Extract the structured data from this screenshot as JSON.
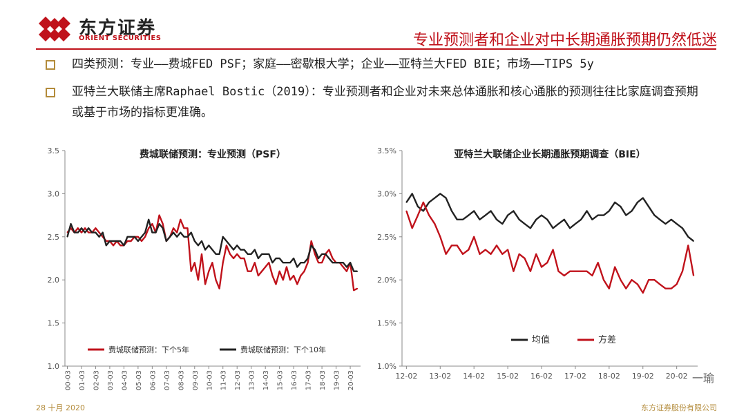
{
  "header": {
    "logo_cn": "东方证券",
    "logo_en": "ORIENT SECURITIES",
    "title": "专业预测者和企业对中长期通胀预期仍然低迷"
  },
  "bullets": [
    "四类预测：专业——费城FED PSF；家庭——密歇根大学；企业——亚特兰大FED BIE；市场——TIPS 5y",
    "亚特兰大联储主席Raphael Bostic（2019）：专业预测者和企业对未来总体通胀和核心通胀的预测往往比家庭调查预期或基于市场的指标更准确。"
  ],
  "footer": {
    "date": "28 十月 2020",
    "company": "东方证券股份有限公司",
    "watermark": "一瑜"
  },
  "colors": {
    "accent": "#c0121b",
    "series_red": "#c0121b",
    "series_black": "#222222",
    "gold": "#b38b3a"
  },
  "chart_data": [
    {
      "type": "line",
      "title": "费城联储预测：专业预测（PSF）",
      "xlabel": "",
      "ylabel": "",
      "ylim": [
        1.0,
        3.5
      ],
      "yticks": [
        "1.0",
        "1.5",
        "2.0",
        "2.5",
        "3.0",
        "3.5"
      ],
      "xticks": [
        "00-03",
        "01-03",
        "02-03",
        "03-03",
        "04-03",
        "05-03",
        "06-03",
        "07-03",
        "08-03",
        "09-03",
        "10-03",
        "11-03",
        "12-03",
        "13-03",
        "14-03",
        "15-03",
        "16-03",
        "17-03",
        "18-03",
        "19-03",
        "20-03"
      ],
      "legend_position": "bottom",
      "series": [
        {
          "name": "费城联储预测：下个5年",
          "color": "#c0121b",
          "x": [
            2000.17,
            2000.42,
            2000.67,
            2000.92,
            2001.17,
            2001.42,
            2001.67,
            2001.92,
            2002.17,
            2002.42,
            2002.67,
            2002.92,
            2003.17,
            2003.42,
            2003.67,
            2003.92,
            2004.17,
            2004.42,
            2004.67,
            2004.92,
            2005.17,
            2005.42,
            2005.67,
            2005.92,
            2006.17,
            2006.42,
            2006.67,
            2006.92,
            2007.17,
            2007.42,
            2007.67,
            2007.92,
            2008.17,
            2008.42,
            2008.67,
            2008.92,
            2009.17,
            2009.42,
            2009.67,
            2009.92,
            2010.17,
            2010.42,
            2010.67,
            2010.92,
            2011.17,
            2011.42,
            2011.67,
            2011.92,
            2012.17,
            2012.42,
            2012.67,
            2012.92,
            2013.17,
            2013.42,
            2013.67,
            2013.92,
            2014.17,
            2014.42,
            2014.67,
            2014.92,
            2015.17,
            2015.42,
            2015.67,
            2015.92,
            2016.17,
            2016.42,
            2016.67,
            2016.92,
            2017.17,
            2017.42,
            2017.67,
            2017.92,
            2018.17,
            2018.42,
            2018.67,
            2018.92,
            2019.17,
            2019.42,
            2019.67,
            2019.92,
            2020.17,
            2020.42,
            2020.67
          ],
          "values": [
            2.55,
            2.6,
            2.55,
            2.6,
            2.55,
            2.6,
            2.55,
            2.55,
            2.6,
            2.55,
            2.5,
            2.45,
            2.45,
            2.4,
            2.45,
            2.4,
            2.4,
            2.45,
            2.45,
            2.5,
            2.5,
            2.45,
            2.5,
            2.6,
            2.65,
            2.55,
            2.75,
            2.65,
            2.45,
            2.5,
            2.6,
            2.55,
            2.7,
            2.6,
            2.6,
            2.1,
            2.2,
            2.0,
            2.3,
            1.95,
            2.1,
            2.2,
            2.0,
            1.9,
            2.2,
            2.4,
            2.3,
            2.25,
            2.3,
            2.25,
            2.25,
            2.1,
            2.1,
            2.2,
            2.05,
            2.1,
            2.15,
            2.2,
            2.05,
            1.95,
            2.1,
            2.0,
            2.15,
            2.0,
            2.05,
            1.95,
            2.05,
            2.1,
            2.2,
            2.45,
            2.3,
            2.2,
            2.2,
            2.3,
            2.35,
            2.25,
            2.2,
            2.2,
            2.15,
            2.1,
            2.2,
            1.88,
            1.9
          ]
        },
        {
          "name": "费城联储预测：下个10年",
          "color": "#222222",
          "x": [
            2000.17,
            2000.42,
            2000.67,
            2000.92,
            2001.17,
            2001.42,
            2001.67,
            2001.92,
            2002.17,
            2002.42,
            2002.67,
            2002.92,
            2003.17,
            2003.42,
            2003.67,
            2003.92,
            2004.17,
            2004.42,
            2004.67,
            2004.92,
            2005.17,
            2005.42,
            2005.67,
            2005.92,
            2006.17,
            2006.42,
            2006.67,
            2006.92,
            2007.17,
            2007.42,
            2007.67,
            2007.92,
            2008.17,
            2008.42,
            2008.67,
            2008.92,
            2009.17,
            2009.42,
            2009.67,
            2009.92,
            2010.17,
            2010.42,
            2010.67,
            2010.92,
            2011.17,
            2011.42,
            2011.67,
            2011.92,
            2012.17,
            2012.42,
            2012.67,
            2012.92,
            2013.17,
            2013.42,
            2013.67,
            2013.92,
            2014.17,
            2014.42,
            2014.67,
            2014.92,
            2015.17,
            2015.42,
            2015.67,
            2015.92,
            2016.17,
            2016.42,
            2016.67,
            2016.92,
            2017.17,
            2017.42,
            2017.67,
            2017.92,
            2018.17,
            2018.42,
            2018.67,
            2018.92,
            2019.17,
            2019.42,
            2019.67,
            2019.92,
            2020.17,
            2020.42,
            2020.67
          ],
          "values": [
            2.5,
            2.65,
            2.55,
            2.55,
            2.6,
            2.55,
            2.6,
            2.55,
            2.55,
            2.5,
            2.55,
            2.4,
            2.45,
            2.45,
            2.45,
            2.45,
            2.4,
            2.5,
            2.5,
            2.5,
            2.45,
            2.5,
            2.55,
            2.7,
            2.55,
            2.55,
            2.65,
            2.6,
            2.45,
            2.5,
            2.55,
            2.5,
            2.55,
            2.5,
            2.5,
            2.55,
            2.45,
            2.4,
            2.45,
            2.35,
            2.4,
            2.35,
            2.3,
            2.3,
            2.5,
            2.45,
            2.4,
            2.35,
            2.4,
            2.35,
            2.35,
            2.3,
            2.3,
            2.35,
            2.25,
            2.3,
            2.3,
            2.3,
            2.2,
            2.25,
            2.25,
            2.2,
            2.2,
            2.2,
            2.25,
            2.15,
            2.2,
            2.2,
            2.25,
            2.4,
            2.35,
            2.25,
            2.3,
            2.3,
            2.25,
            2.2,
            2.2,
            2.2,
            2.2,
            2.15,
            2.2,
            2.1,
            2.1
          ]
        }
      ]
    },
    {
      "type": "line",
      "title": "亚特兰大联储企业长期通胀预期调查（BIE）",
      "xlabel": "",
      "ylabel": "",
      "ylim": [
        1.0,
        3.5
      ],
      "yticks": [
        "1.0%",
        "1.5%",
        "2.0%",
        "2.5%",
        "3.0%",
        "3.5%"
      ],
      "xticks": [
        "12-02",
        "13-02",
        "14-02",
        "15-02",
        "16-02",
        "17-02",
        "18-02",
        "19-02",
        "20-02"
      ],
      "legend_position": "bottom",
      "series": [
        {
          "name": "均值",
          "color": "#222222",
          "x": [
            2012.08,
            2012.25,
            2012.42,
            2012.58,
            2012.75,
            2012.92,
            2013.08,
            2013.25,
            2013.42,
            2013.58,
            2013.75,
            2013.92,
            2014.08,
            2014.25,
            2014.42,
            2014.58,
            2014.75,
            2014.92,
            2015.08,
            2015.25,
            2015.42,
            2015.58,
            2015.75,
            2015.92,
            2016.08,
            2016.25,
            2016.42,
            2016.58,
            2016.75,
            2016.92,
            2017.08,
            2017.25,
            2017.42,
            2017.58,
            2017.75,
            2017.92,
            2018.08,
            2018.25,
            2018.42,
            2018.58,
            2018.75,
            2018.92,
            2019.08,
            2019.25,
            2019.42,
            2019.58,
            2019.75,
            2019.92,
            2020.08,
            2020.25,
            2020.42,
            2020.58
          ],
          "values": [
            2.9,
            3.0,
            2.85,
            2.8,
            2.9,
            2.95,
            3.0,
            2.95,
            2.8,
            2.7,
            2.7,
            2.75,
            2.8,
            2.7,
            2.75,
            2.8,
            2.7,
            2.65,
            2.75,
            2.8,
            2.7,
            2.65,
            2.6,
            2.7,
            2.75,
            2.7,
            2.6,
            2.65,
            2.7,
            2.6,
            2.65,
            2.7,
            2.8,
            2.7,
            2.75,
            2.75,
            2.8,
            2.9,
            2.85,
            2.75,
            2.8,
            2.9,
            2.95,
            2.85,
            2.75,
            2.7,
            2.65,
            2.7,
            2.65,
            2.6,
            2.5,
            2.45
          ]
        },
        {
          "name": "方差",
          "color": "#c0121b",
          "x": [
            2012.08,
            2012.25,
            2012.42,
            2012.58,
            2012.75,
            2012.92,
            2013.08,
            2013.25,
            2013.42,
            2013.58,
            2013.75,
            2013.92,
            2014.08,
            2014.25,
            2014.42,
            2014.58,
            2014.75,
            2014.92,
            2015.08,
            2015.25,
            2015.42,
            2015.58,
            2015.75,
            2015.92,
            2016.08,
            2016.25,
            2016.42,
            2016.58,
            2016.75,
            2016.92,
            2017.08,
            2017.25,
            2017.42,
            2017.58,
            2017.75,
            2017.92,
            2018.08,
            2018.25,
            2018.42,
            2018.58,
            2018.75,
            2018.92,
            2019.08,
            2019.25,
            2019.42,
            2019.58,
            2019.75,
            2019.92,
            2020.08,
            2020.25,
            2020.42,
            2020.58
          ],
          "values": [
            2.8,
            2.6,
            2.75,
            2.9,
            2.75,
            2.65,
            2.5,
            2.3,
            2.4,
            2.4,
            2.3,
            2.35,
            2.5,
            2.3,
            2.35,
            2.3,
            2.4,
            2.3,
            2.35,
            2.1,
            2.3,
            2.25,
            2.1,
            2.3,
            2.15,
            2.2,
            2.35,
            2.1,
            2.05,
            2.1,
            2.1,
            2.1,
            2.1,
            2.05,
            2.2,
            2.0,
            1.9,
            2.15,
            2.0,
            1.9,
            2.0,
            1.95,
            1.85,
            2.0,
            2.0,
            1.95,
            1.9,
            1.9,
            1.95,
            2.1,
            2.4,
            2.05
          ]
        }
      ]
    }
  ]
}
